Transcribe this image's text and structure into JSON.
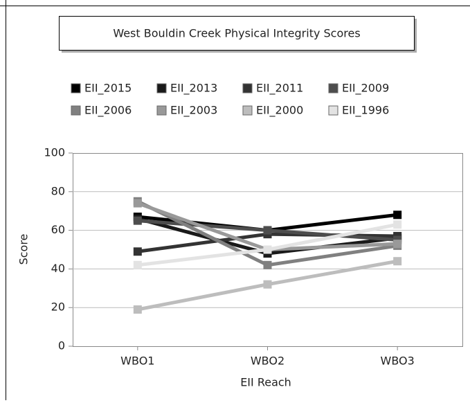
{
  "chart_data": {
    "type": "line",
    "title": "West Bouldin Creek Physical Integrity Scores",
    "x_label": "EII Reach",
    "y_label": "Score",
    "categories": [
      "WBO1",
      "WBO2",
      "WBO3"
    ],
    "ylim": [
      0,
      100
    ],
    "yticks": [
      0,
      20,
      40,
      60,
      80,
      100
    ],
    "grid": true,
    "series": [
      {
        "name": "EII_2015",
        "color": "#000000",
        "values": [
          67,
          60,
          68
        ]
      },
      {
        "name": "EII_2013",
        "color": "#1a1a1a",
        "values": [
          66,
          48,
          56
        ]
      },
      {
        "name": "EII_2011",
        "color": "#333333",
        "values": [
          49,
          58,
          57
        ]
      },
      {
        "name": "EII_2009",
        "color": "#4d4d4d",
        "values": [
          65,
          60,
          55
        ]
      },
      {
        "name": "EII_2006",
        "color": "#808080",
        "values": [
          75,
          42,
          52
        ]
      },
      {
        "name": "EII_2003",
        "color": "#999999",
        "values": [
          74,
          50,
          53
        ]
      },
      {
        "name": "EII_2000",
        "color": "#bdbdbd",
        "values": [
          19,
          32,
          44
        ]
      },
      {
        "name": "EII_1996",
        "color": "#e3e3e3",
        "values": [
          42,
          50,
          63
        ]
      }
    ]
  }
}
